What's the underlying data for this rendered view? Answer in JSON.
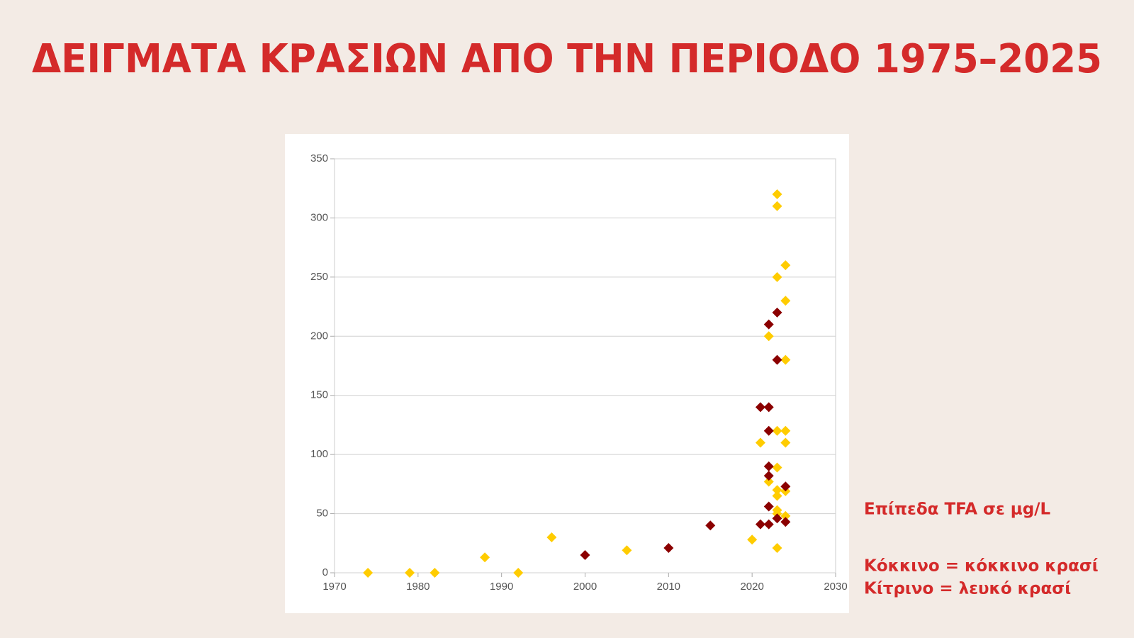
{
  "title": "ΔΕΙΓΜΑΤΑ ΚΡΑΣΙΩΝ ΑΠΟ ΤΗΝ ΠΕΡΙΟΔΟ 1975–2025",
  "annotations": [
    "Επίπεδα TFA σε μg/L",
    "Κόκκινο = κόκκινο κρασί",
    "Κίτρινο = λευκό κρασί"
  ],
  "chart_data": {
    "type": "scatter",
    "xlim": [
      1970,
      2030
    ],
    "xticks": [
      1970,
      1980,
      1990,
      2000,
      2010,
      2020,
      2030
    ],
    "ylim": [
      0,
      350
    ],
    "yticks": [
      0,
      50,
      100,
      150,
      200,
      250,
      300,
      350
    ],
    "grid": true,
    "series": [
      {
        "color": "#ffcc00",
        "x": [
          1974,
          1979,
          1982,
          1988,
          1992,
          1996,
          2005,
          2020,
          2021,
          2022,
          2022,
          2023,
          2023,
          2023,
          2023,
          2023,
          2023,
          2023,
          2023,
          2023,
          2023,
          2024,
          2024,
          2024,
          2024,
          2024,
          2024,
          2024
        ],
        "values": [
          0,
          0,
          0,
          13,
          0,
          30,
          19,
          28,
          110,
          200,
          77,
          320,
          310,
          250,
          120,
          89,
          70,
          65,
          53,
          50,
          21,
          260,
          230,
          180,
          120,
          110,
          69,
          48
        ]
      },
      {
        "color": "#8b0000",
        "x": [
          2000,
          2010,
          2015,
          2021,
          2021,
          2022,
          2022,
          2022,
          2022,
          2022,
          2022,
          2022,
          2023,
          2023,
          2023,
          2024,
          2024
        ],
        "values": [
          15,
          21,
          40,
          140,
          41,
          140,
          210,
          120,
          90,
          82,
          56,
          41,
          220,
          180,
          46,
          73,
          43
        ]
      }
    ]
  }
}
